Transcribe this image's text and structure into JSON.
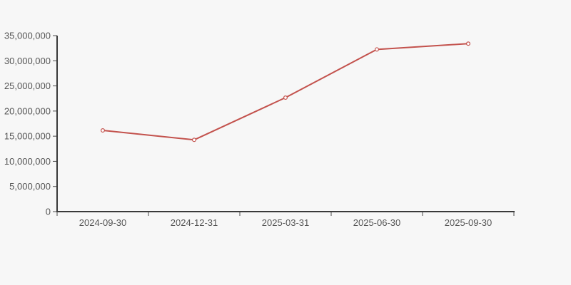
{
  "chart_data": {
    "type": "line",
    "categories": [
      "2024-09-30",
      "2024-12-31",
      "2025-03-31",
      "2025-06-30",
      "2025-09-30"
    ],
    "values": [
      16150000,
      14270000,
      22670000,
      32260000,
      33400000
    ],
    "series_name": "",
    "title": "",
    "xlabel": "",
    "ylabel": "",
    "ylim": [
      0,
      35000000
    ],
    "ytick_interval": 5000000,
    "ytick_labels": [
      "0",
      "5,000,000",
      "10,000,000",
      "15,000,000",
      "20,000,000",
      "25,000,000",
      "30,000,000",
      "35,000,000"
    ],
    "grid": false,
    "legend": false,
    "marker": "hollow-circle",
    "colors": {
      "line": "#c3524d",
      "marker_fill": "#ffffff",
      "background": "#f7f7f7",
      "axis": "#3a3a3a",
      "tick": "#4a4a4a",
      "label": "#555555"
    }
  }
}
